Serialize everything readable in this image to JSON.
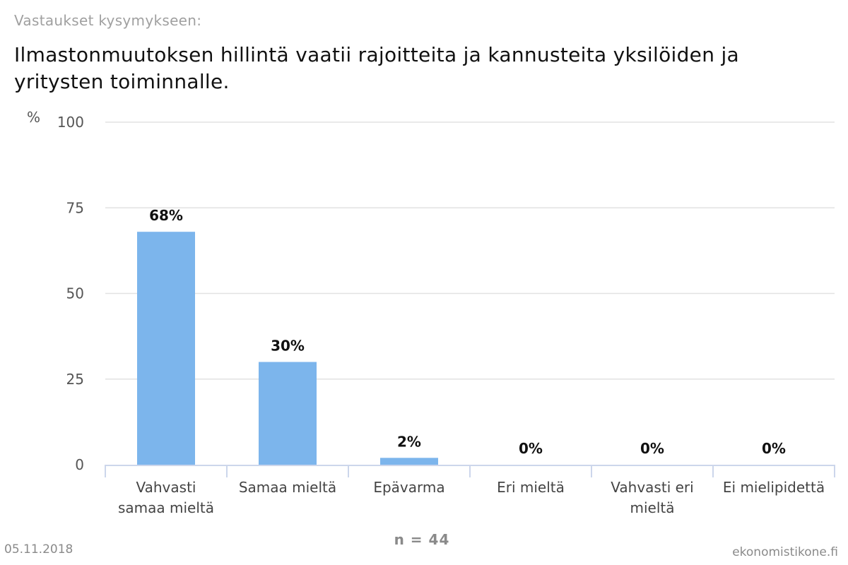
{
  "header": {
    "subtitle": "Vastaukset kysymykseen:",
    "title": "Ilmastonmuutoksen hillintä vaatii rajoitteita ja kannusteita yksilöiden ja yritysten toiminnalle."
  },
  "chart_data": {
    "type": "bar",
    "categories": [
      "Vahvasti samaa mieltä",
      "Samaa mieltä",
      "Epävarma",
      "Eri mieltä",
      "Vahvasti eri mieltä",
      "Ei mielipidettä"
    ],
    "values": [
      68,
      30,
      2,
      0,
      0,
      0
    ],
    "data_labels": [
      "68%",
      "30%",
      "2%",
      "0%",
      "0%",
      "0%"
    ],
    "ylabel": "%",
    "ylim": [
      0,
      100
    ],
    "yticks": [
      0,
      25,
      50,
      75,
      100
    ],
    "grid": true,
    "bar_color": "#7cb5ec"
  },
  "footer": {
    "date": "05.11.2018",
    "sample_size": "n = 44",
    "source": "ekonomistikone.fi"
  }
}
